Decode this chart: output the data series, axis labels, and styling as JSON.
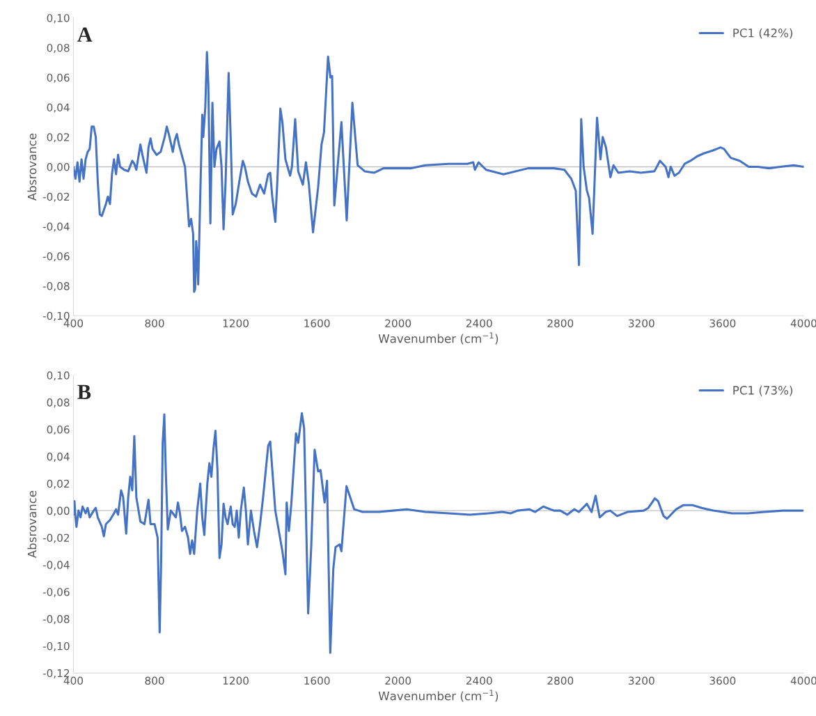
{
  "chart_data": [
    {
      "type": "line",
      "annotations": [
        "A"
      ],
      "xlabel": "Wavenumber (cm$^{−1}$)",
      "ylabel": "Absrovance",
      "legend": "top right",
      "grid": false,
      "line_style": "solid",
      "xlim": [
        400,
        4000
      ],
      "xticks": [
        400,
        800,
        1200,
        1600,
        2000,
        2400,
        2800,
        3200,
        3600,
        4000
      ],
      "ylim": [
        -0.1,
        0.1
      ],
      "yticks": [
        {
          "value": -0.1,
          "label": "-0,10"
        },
        {
          "value": -0.08,
          "label": "-0,08"
        },
        {
          "value": -0.06,
          "label": "-0,06"
        },
        {
          "value": -0.04,
          "label": "-0,04"
        },
        {
          "value": -0.02,
          "label": "-0,02"
        },
        {
          "value": 0,
          "label": "0,00"
        },
        {
          "value": 0.02,
          "label": "0,02"
        },
        {
          "value": 0.04,
          "label": "0,04"
        },
        {
          "value": 0.06,
          "label": "0,06"
        },
        {
          "value": 0.08,
          "label": "0,08"
        },
        {
          "value": 0.1,
          "label": "0,10"
        }
      ],
      "ref_lines": [
        {
          "axis": "y",
          "value": 0,
          "color": "#c0c0c0"
        }
      ],
      "series": [
        {
          "name": "PC1 (42%)",
          "color": "#4472c4",
          "x": [
            400,
            410,
            420,
            430,
            440,
            450,
            460,
            470,
            480,
            490,
            500,
            510,
            520,
            530,
            540,
            560,
            570,
            580,
            590,
            600,
            610,
            620,
            630,
            650,
            670,
            690,
            700,
            710,
            730,
            740,
            760,
            770,
            780,
            790,
            810,
            830,
            850,
            860,
            870,
            890,
            900,
            910,
            920,
            940,
            950,
            960,
            970,
            980,
            990,
            995,
            1000,
            1005,
            1010,
            1015,
            1025,
            1035,
            1040,
            1050,
            1058,
            1065,
            1075,
            1085,
            1095,
            1105,
            1120,
            1130,
            1140,
            1150,
            1165,
            1175,
            1185,
            1200,
            1220,
            1235,
            1245,
            1260,
            1280,
            1300,
            1320,
            1340,
            1360,
            1370,
            1380,
            1395,
            1405,
            1420,
            1430,
            1445,
            1468,
            1477,
            1493,
            1508,
            1531,
            1546,
            1560,
            1581,
            1606,
            1623,
            1635,
            1655,
            1667,
            1675,
            1686,
            1721,
            1747,
            1775,
            1801,
            1836,
            1882,
            1928,
            2066,
            2135,
            2250,
            2342,
            2371,
            2379,
            2397,
            2434,
            2520,
            2641,
            2768,
            2820,
            2854,
            2876,
            2892,
            2903,
            2915,
            2931,
            2942,
            2959,
            2981,
            2998,
            3009,
            3025,
            3047,
            3062,
            3086,
            3142,
            3197,
            3264,
            3291,
            3319,
            3333,
            3344,
            3363,
            3385,
            3413,
            3441,
            3474,
            3507,
            3552,
            3590,
            3607,
            3640,
            3685,
            3729,
            3773,
            3829,
            3884,
            3950,
            4000
          ],
          "values": [
            0.0,
            -0.008,
            0.003,
            -0.01,
            0.005,
            -0.008,
            0.005,
            0.01,
            0.012,
            0.027,
            0.027,
            0.02,
            -0.01,
            -0.032,
            -0.033,
            -0.025,
            -0.02,
            -0.025,
            -0.005,
            0.005,
            -0.005,
            0.008,
            0.0,
            -0.002,
            -0.003,
            0.004,
            0.002,
            -0.002,
            0.015,
            0.008,
            -0.004,
            0.013,
            0.019,
            0.012,
            0.008,
            0.01,
            0.02,
            0.027,
            0.022,
            0.01,
            0.018,
            0.022,
            0.015,
            0.005,
            0.0,
            -0.02,
            -0.04,
            -0.035,
            -0.045,
            -0.084,
            -0.082,
            -0.05,
            -0.06,
            -0.079,
            -0.02,
            0.035,
            0.02,
            0.04,
            0.077,
            0.055,
            -0.038,
            0.043,
            0.0,
            0.012,
            0.017,
            0.0,
            -0.042,
            -0.01,
            0.063,
            0.02,
            -0.032,
            -0.025,
            -0.008,
            0.004,
            0.0,
            -0.01,
            -0.018,
            -0.02,
            -0.012,
            -0.018,
            -0.005,
            -0.004,
            -0.02,
            -0.037,
            -0.01,
            0.039,
            0.03,
            0.005,
            -0.006,
            0.0,
            0.032,
            -0.003,
            -0.012,
            0.003,
            -0.011,
            -0.044,
            -0.014,
            0.015,
            0.023,
            0.074,
            0.06,
            0.061,
            -0.026,
            0.03,
            -0.036,
            0.043,
            0.001,
            -0.003,
            -0.004,
            -0.001,
            -0.001,
            0.001,
            0.002,
            0.002,
            0.003,
            -0.002,
            0.003,
            -0.002,
            -0.005,
            -0.001,
            -0.001,
            -0.002,
            -0.008,
            -0.016,
            -0.066,
            0.032,
            0.0,
            -0.016,
            -0.021,
            -0.045,
            0.033,
            0.005,
            0.02,
            0.013,
            -0.007,
            0.001,
            -0.004,
            -0.003,
            -0.004,
            -0.003,
            0.004,
            0.0,
            -0.007,
            0.0,
            -0.006,
            -0.004,
            0.002,
            0.004,
            0.007,
            0.009,
            0.011,
            0.013,
            0.012,
            0.006,
            0.004,
            0.0,
            0.0,
            -0.001,
            0.0,
            0.001,
            0.0
          ]
        }
      ]
    },
    {
      "type": "line",
      "annotations": [
        "B"
      ],
      "xlabel": "Wavenumber (cm$^{−1}$)",
      "ylabel": "Absrovance",
      "legend": "top right",
      "grid": false,
      "line_style": "solid",
      "xlim": [
        400,
        4000
      ],
      "xticks": [
        400,
        800,
        1200,
        1600,
        2000,
        2400,
        2800,
        3200,
        3600,
        4000
      ],
      "ylim": [
        -0.12,
        0.1
      ],
      "yticks": [
        {
          "value": -0.12,
          "label": "-0,12"
        },
        {
          "value": -0.1,
          "label": "-0,10"
        },
        {
          "value": -0.08,
          "label": "-0,08"
        },
        {
          "value": -0.06,
          "label": "-0,06"
        },
        {
          "value": -0.04,
          "label": "-0,04"
        },
        {
          "value": -0.02,
          "label": "-0,02"
        },
        {
          "value": 0,
          "label": "0,00"
        },
        {
          "value": 0.02,
          "label": "0,02"
        },
        {
          "value": 0.04,
          "label": "0,04"
        },
        {
          "value": 0.06,
          "label": "0,06"
        },
        {
          "value": 0.08,
          "label": "0,08"
        },
        {
          "value": 0.1,
          "label": "0,10"
        }
      ],
      "ref_lines": [
        {
          "axis": "y",
          "value": 0,
          "color": "#c0c0c0"
        }
      ],
      "series": [
        {
          "name": "PC1 (73%)",
          "color": "#4472c4",
          "x": [
            400,
            405,
            410,
            415,
            425,
            435,
            445,
            460,
            470,
            480,
            500,
            510,
            520,
            540,
            550,
            560,
            580,
            600,
            610,
            620,
            635,
            645,
            660,
            670,
            680,
            690,
            700,
            710,
            730,
            750,
            770,
            780,
            800,
            815,
            825,
            832,
            840,
            848,
            855,
            865,
            880,
            890,
            905,
            915,
            925,
            935,
            950,
            965,
            975,
            985,
            995,
            1010,
            1025,
            1035,
            1045,
            1060,
            1070,
            1080,
            1090,
            1100,
            1110,
            1120,
            1130,
            1140,
            1150,
            1160,
            1175,
            1185,
            1195,
            1205,
            1215,
            1225,
            1240,
            1250,
            1260,
            1275,
            1290,
            1305,
            1320,
            1335,
            1345,
            1360,
            1370,
            1395,
            1430,
            1445,
            1451,
            1462,
            1474,
            1497,
            1508,
            1526,
            1537,
            1557,
            1572,
            1589,
            1606,
            1618,
            1638,
            1650,
            1666,
            1681,
            1692,
            1712,
            1721,
            1746,
            1784,
            1825,
            1905,
            1974,
            2043,
            2135,
            2250,
            2354,
            2446,
            2515,
            2555,
            2589,
            2647,
            2676,
            2716,
            2768,
            2800,
            2834,
            2869,
            2891,
            2931,
            2954,
            2974,
            2994,
            3023,
            3046,
            3080,
            3131,
            3211,
            3234,
            3266,
            3282,
            3309,
            3326,
            3371,
            3406,
            3451,
            3497,
            3554,
            3646,
            3726,
            3806,
            3897,
            3995
          ],
          "values": [
            -0.003,
            0.007,
            -0.005,
            -0.012,
            0.0,
            -0.005,
            0.003,
            -0.002,
            0.002,
            -0.005,
            0.0,
            0.002,
            -0.005,
            -0.012,
            -0.019,
            -0.01,
            -0.007,
            -0.002,
            0.001,
            -0.003,
            0.015,
            0.01,
            -0.017,
            0.01,
            0.025,
            0.015,
            0.055,
            0.01,
            -0.008,
            -0.01,
            0.008,
            -0.01,
            -0.01,
            -0.02,
            -0.09,
            -0.04,
            0.05,
            0.071,
            0.03,
            -0.014,
            0.0,
            -0.002,
            -0.005,
            0.006,
            -0.002,
            -0.015,
            -0.012,
            -0.02,
            -0.032,
            -0.022,
            -0.032,
            0.0,
            0.02,
            -0.005,
            -0.018,
            0.02,
            0.035,
            0.025,
            0.045,
            0.059,
            0.03,
            -0.035,
            -0.025,
            0.005,
            -0.005,
            -0.01,
            0.003,
            -0.01,
            -0.012,
            0.0,
            -0.02,
            0.0,
            0.017,
            0.0,
            -0.025,
            0.0,
            -0.015,
            -0.027,
            -0.01,
            0.01,
            0.025,
            0.048,
            0.051,
            0.0,
            -0.03,
            -0.047,
            0.006,
            -0.015,
            0.005,
            0.057,
            0.05,
            0.072,
            0.061,
            -0.076,
            -0.027,
            0.045,
            0.029,
            0.03,
            0.006,
            0.022,
            -0.105,
            -0.043,
            -0.027,
            -0.025,
            -0.03,
            0.018,
            0.001,
            -0.001,
            -0.001,
            0.0,
            0.001,
            -0.001,
            -0.002,
            -0.003,
            -0.002,
            -0.001,
            -0.002,
            0.0,
            0.001,
            -0.001,
            0.003,
            0.0,
            0.0,
            -0.003,
            0.001,
            -0.001,
            0.005,
            -0.001,
            0.011,
            -0.005,
            -0.001,
            0.0,
            -0.004,
            -0.001,
            0.0,
            0.002,
            0.009,
            0.007,
            -0.004,
            -0.006,
            0.001,
            0.004,
            0.004,
            0.002,
            0.0,
            -0.002,
            -0.002,
            -0.001,
            0.0,
            0.0
          ]
        }
      ]
    }
  ]
}
